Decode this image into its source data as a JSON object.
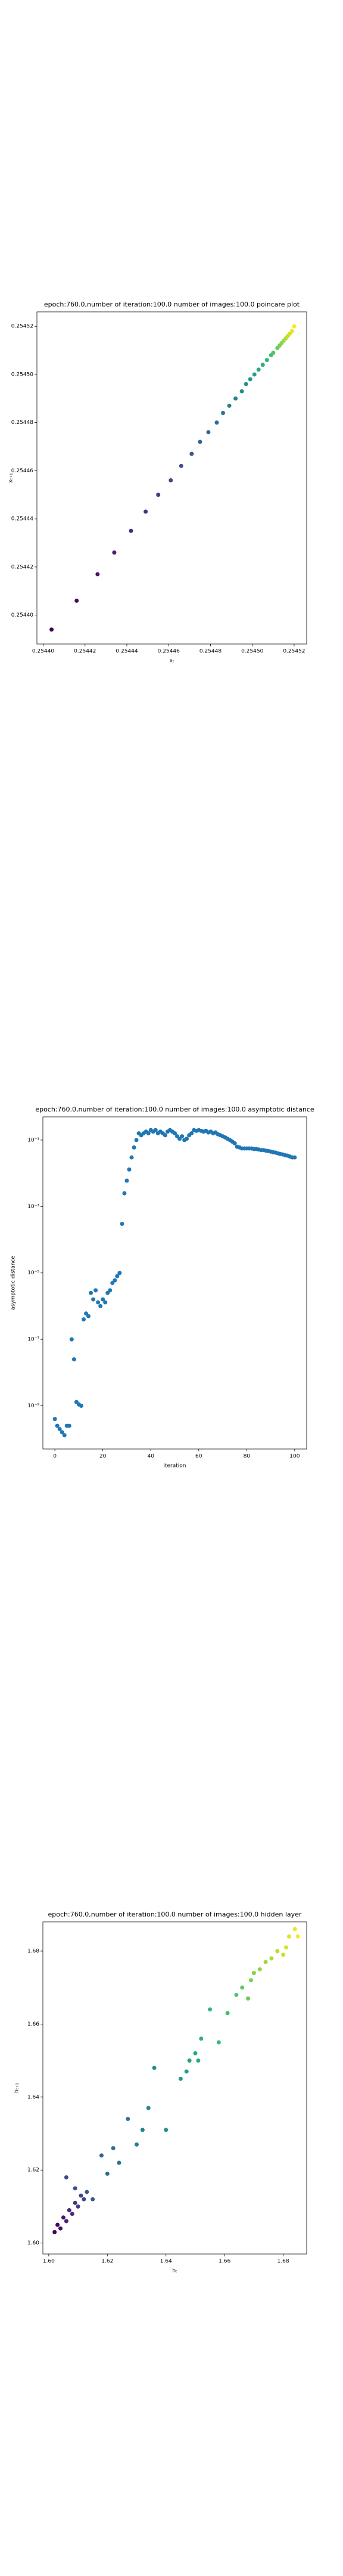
{
  "chart_data": [
    {
      "type": "scatter",
      "title": "epoch:760.0,number of iteration:100.0 number of images:100.0 poincare plot",
      "xlabel": "xₜ",
      "ylabel": "xₜ₊₁",
      "cmap": "viridis",
      "x": [
        0.254404,
        0.254416,
        0.254426,
        0.254434,
        0.254442,
        0.254449,
        0.254455,
        0.254461,
        0.254466,
        0.254471,
        0.254475,
        0.254479,
        0.254483,
        0.254486,
        0.254489,
        0.254492,
        0.254495,
        0.254497,
        0.254499,
        0.254501,
        0.254503,
        0.254505,
        0.254507,
        0.254509,
        0.25451,
        0.254512,
        0.254513,
        0.254514,
        0.254515,
        0.254516,
        0.254517,
        0.254518,
        0.254519,
        0.25452
      ],
      "y": [
        0.254394,
        0.254406,
        0.254417,
        0.254426,
        0.254435,
        0.254443,
        0.25445,
        0.254456,
        0.254462,
        0.254467,
        0.254472,
        0.254476,
        0.25448,
        0.254484,
        0.254487,
        0.25449,
        0.254493,
        0.254496,
        0.254498,
        0.2545,
        0.254502,
        0.254504,
        0.254506,
        0.254508,
        0.254509,
        0.254511,
        0.254512,
        0.254513,
        0.254514,
        0.254515,
        0.254516,
        0.254517,
        0.254518,
        0.25452
      ],
      "xlim": [
        0.254397,
        0.254526
      ],
      "ylim": [
        0.254388,
        0.254526
      ],
      "xticks": [
        {
          "value": 0.2544,
          "label": "0.25440"
        },
        {
          "value": 0.25442,
          "label": "0.25442"
        },
        {
          "value": 0.25444,
          "label": "0.25444"
        },
        {
          "value": 0.25446,
          "label": "0.25446"
        },
        {
          "value": 0.25448,
          "label": "0.25448"
        },
        {
          "value": 0.2545,
          "label": "0.25450"
        },
        {
          "value": 0.25452,
          "label": "0.25452"
        }
      ],
      "yticks": [
        {
          "value": 0.2544,
          "label": "0.25440"
        },
        {
          "value": 0.25442,
          "label": "0.25442"
        },
        {
          "value": 0.25444,
          "label": "0.25444"
        },
        {
          "value": 0.25446,
          "label": "0.25446"
        },
        {
          "value": 0.25448,
          "label": "0.25448"
        },
        {
          "value": 0.2545,
          "label": "0.25450"
        },
        {
          "value": 0.25452,
          "label": "0.25452"
        }
      ]
    },
    {
      "type": "scatter",
      "title": "epoch:760.0,number of iteration:100.0  number of images:100.0 asymptotic distance",
      "xlabel": "iteration",
      "ylabel": "asymptotic distance",
      "color": "#1f77b4",
      "ylog": true,
      "x": [
        0,
        1,
        2,
        3,
        4,
        5,
        6,
        7,
        8,
        9,
        10,
        11,
        12,
        13,
        14,
        15,
        16,
        17,
        18,
        19,
        20,
        21,
        22,
        23,
        24,
        25,
        26,
        27,
        28,
        29,
        30,
        31,
        32,
        33,
        34,
        35,
        36,
        37,
        38,
        39,
        40,
        41,
        42,
        43,
        44,
        45,
        46,
        47,
        48,
        49,
        50,
        51,
        52,
        53,
        54,
        55,
        56,
        57,
        58,
        59,
        60,
        61,
        62,
        63,
        64,
        65,
        66,
        67,
        68,
        69,
        70,
        71,
        72,
        73,
        74,
        75,
        76,
        77,
        78,
        79,
        80,
        81,
        82,
        83,
        84,
        85,
        86,
        87,
        88,
        89,
        90,
        91,
        92,
        93,
        94,
        95,
        96,
        97,
        98,
        99,
        100
      ],
      "y": [
        4e-10,
        2.5e-10,
        2e-10,
        1.6e-10,
        1.3e-10,
        2.5e-10,
        2.5e-10,
        1e-07,
        2.5e-08,
        1.3e-09,
        1.1e-09,
        1e-09,
        4e-07,
        6e-07,
        5e-07,
        2.5e-06,
        1.6e-06,
        3e-06,
        1.3e-06,
        1e-06,
        1.6e-06,
        1.3e-06,
        2.5e-06,
        3e-06,
        5e-06,
        6e-06,
        8e-06,
        1e-05,
        0.0003,
        0.0025,
        0.006,
        0.013,
        0.03,
        0.06,
        0.1,
        0.16,
        0.14,
        0.16,
        0.18,
        0.16,
        0.2,
        0.18,
        0.2,
        0.16,
        0.18,
        0.16,
        0.14,
        0.18,
        0.2,
        0.18,
        0.16,
        0.13,
        0.11,
        0.13,
        0.1,
        0.11,
        0.14,
        0.16,
        0.2,
        0.19,
        0.2,
        0.19,
        0.18,
        0.19,
        0.17,
        0.18,
        0.16,
        0.17,
        0.15,
        0.14,
        0.13,
        0.12,
        0.11,
        0.1,
        0.09,
        0.08,
        0.063,
        0.06,
        0.056,
        0.056,
        0.056,
        0.056,
        0.056,
        0.054,
        0.054,
        0.052,
        0.05,
        0.05,
        0.048,
        0.047,
        0.045,
        0.043,
        0.042,
        0.04,
        0.038,
        0.037,
        0.035,
        0.034,
        0.032,
        0.03,
        0.03
      ],
      "xlim": [
        -5,
        105
      ],
      "ylim": [
        5e-11,
        0.5
      ],
      "xticks": [
        0,
        20,
        40,
        60,
        80,
        100
      ],
      "yticks": [
        {
          "value": 1e-09,
          "label": "10⁻⁹"
        },
        {
          "value": 1e-07,
          "label": "10⁻⁷"
        },
        {
          "value": 1e-05,
          "label": "10⁻⁵"
        },
        {
          "value": 0.001,
          "label": "10⁻³"
        },
        {
          "value": 0.1,
          "label": "10⁻¹"
        }
      ]
    },
    {
      "type": "scatter",
      "title": "epoch:760.0,number of iteration:100.0  number of images:100.0 hidden layer",
      "xlabel": "hₜ",
      "ylabel": "hₜ₊₁",
      "cmap": "viridis",
      "x": [
        1.602,
        1.603,
        1.604,
        1.605,
        1.606,
        1.607,
        1.608,
        1.609,
        1.61,
        1.611,
        1.612,
        1.606,
        1.609,
        1.613,
        1.615,
        1.618,
        1.62,
        1.622,
        1.624,
        1.627,
        1.63,
        1.632,
        1.634,
        1.636,
        1.64,
        1.645,
        1.647,
        1.648,
        1.65,
        1.651,
        1.652,
        1.655,
        1.658,
        1.661,
        1.664,
        1.666,
        1.668,
        1.669,
        1.67,
        1.672,
        1.674,
        1.676,
        1.678,
        1.68,
        1.681,
        1.682,
        1.684,
        1.685
      ],
      "y": [
        1.603,
        1.605,
        1.604,
        1.607,
        1.606,
        1.609,
        1.608,
        1.611,
        1.61,
        1.613,
        1.612,
        1.618,
        1.615,
        1.614,
        1.612,
        1.624,
        1.619,
        1.626,
        1.622,
        1.634,
        1.627,
        1.631,
        1.637,
        1.648,
        1.631,
        1.645,
        1.647,
        1.65,
        1.652,
        1.65,
        1.656,
        1.664,
        1.655,
        1.663,
        1.668,
        1.67,
        1.667,
        1.672,
        1.674,
        1.675,
        1.677,
        1.678,
        1.68,
        1.679,
        1.681,
        1.684,
        1.686,
        1.684
      ],
      "xlim": [
        1.598,
        1.688
      ],
      "ylim": [
        1.597,
        1.688
      ],
      "xticks": [
        {
          "value": 1.6,
          "label": "1.60"
        },
        {
          "value": 1.62,
          "label": "1.62"
        },
        {
          "value": 1.64,
          "label": "1.64"
        },
        {
          "value": 1.66,
          "label": "1.66"
        },
        {
          "value": 1.68,
          "label": "1.68"
        }
      ],
      "yticks": [
        {
          "value": 1.6,
          "label": "1.60"
        },
        {
          "value": 1.62,
          "label": "1.62"
        },
        {
          "value": 1.64,
          "label": "1.64"
        },
        {
          "value": 1.66,
          "label": "1.66"
        },
        {
          "value": 1.68,
          "label": "1.68"
        }
      ]
    }
  ]
}
